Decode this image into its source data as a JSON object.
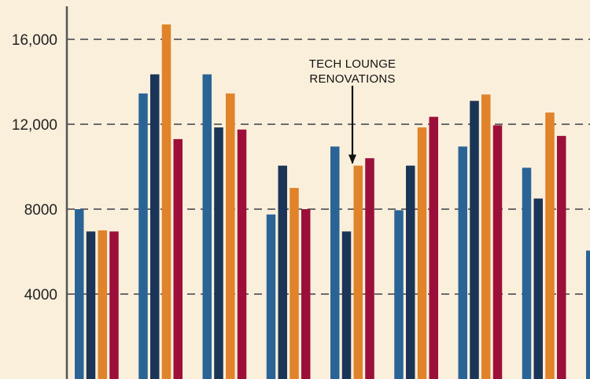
{
  "colors": {
    "background": "#faefdb",
    "gridline": "#6b6b6b",
    "axis": "#555555",
    "annotation": "#111111"
  },
  "chart_data": {
    "type": "bar",
    "grid": true,
    "ylim": [
      0,
      17700
    ],
    "yticks": [
      {
        "value": 4000,
        "label": "4000"
      },
      {
        "value": 8000,
        "label": "8000"
      },
      {
        "value": 12000,
        "label": "12,000"
      },
      {
        "value": 16000,
        "label": "16,000"
      }
    ],
    "series": [
      {
        "color": "#2a6496"
      },
      {
        "color": "#1a3557"
      },
      {
        "color": "#e0832a"
      },
      {
        "color": "#9c0f3a"
      }
    ],
    "groups": [
      {
        "values": [
          8000,
          6950,
          7000,
          6950
        ]
      },
      {
        "values": [
          13450,
          14350,
          16700,
          11300
        ]
      },
      {
        "values": [
          14350,
          11850,
          13450,
          11750
        ]
      },
      {
        "values": [
          7750,
          10050,
          9000,
          8000
        ]
      },
      {
        "values": [
          10950,
          6950,
          10050,
          10400
        ]
      },
      {
        "values": [
          7950,
          10050,
          11850,
          12350
        ]
      },
      {
        "values": [
          10950,
          13100,
          13400,
          11950
        ]
      },
      {
        "values": [
          9950,
          8500,
          12550,
          11450
        ]
      },
      {
        "values": [
          6050,
          null,
          null,
          null
        ]
      }
    ],
    "annotations": [
      {
        "lines": [
          "TECH LOUNGE",
          "RENOVATIONS"
        ],
        "group": 4,
        "series": 2
      }
    ]
  }
}
